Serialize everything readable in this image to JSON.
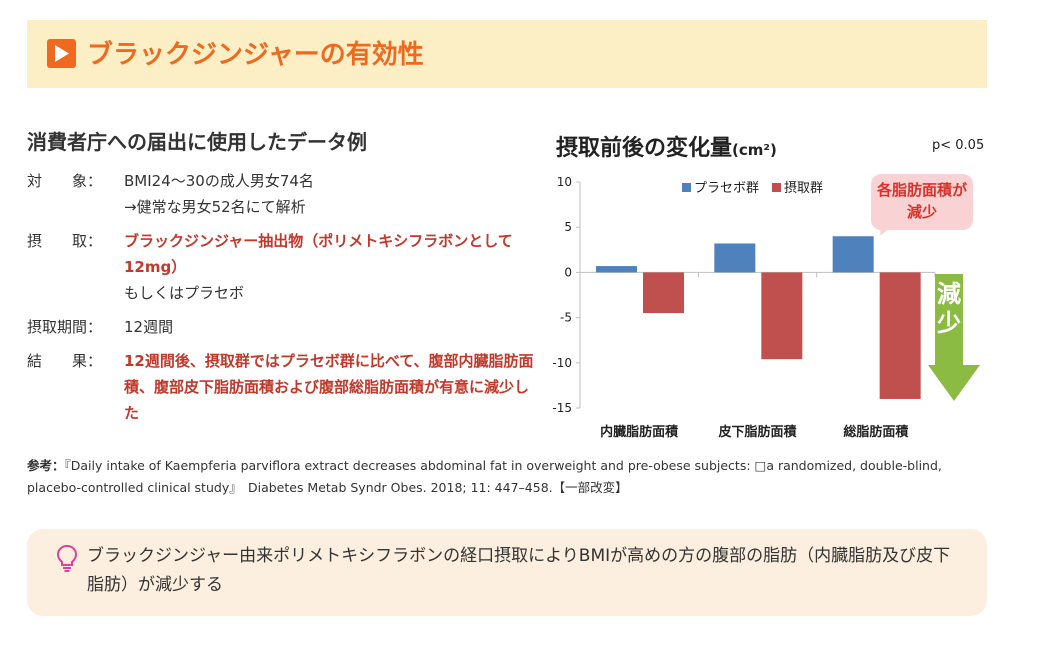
{
  "header": {
    "title": "ブラックジンジャーの有効性",
    "icon": "play-arrow-icon",
    "accent_color": "#ee6a1e"
  },
  "section": {
    "title": "消費者庁への届出に使用したデータ例"
  },
  "info": {
    "subject_label": "対　　象：",
    "subject_line1": "BMI24〜30の成人男女74名",
    "subject_line2": "→健常な男女52名にて解析",
    "intake_label": "摂　　取：",
    "intake_value": "ブラックジンジャー抽出物（ポリメトキシフラボンとして12mg）",
    "intake_alt": "もしくはプラセボ",
    "period_label": "摂取期間：",
    "period_value": "12週間",
    "result_label": "結　　果：",
    "result_value": "12週間後、摂取群ではプラセボ群に比べて、腹部内臓脂肪面積、腹部皮下脂肪面積および腹部総脂肪面積が有意に減少した"
  },
  "chart": {
    "title": "摂取前後の変化量",
    "unit": "(cm²)",
    "pvalue": "p< 0.05",
    "callout": "各脂肪面積が減少",
    "arrow_label": "減少"
  },
  "chart_data": {
    "type": "bar",
    "categories": [
      "内臓脂肪面積",
      "皮下脂肪面積",
      "総脂肪面積"
    ],
    "series": [
      {
        "name": "プラセボ群",
        "color": "#4f81bd",
        "values": [
          0.7,
          3.2,
          4.0
        ]
      },
      {
        "name": "摂取群",
        "color": "#c0504d",
        "values": [
          -4.5,
          -9.6,
          -14.0
        ]
      }
    ],
    "ylim": [
      -15,
      10
    ],
    "yticks": [
      10,
      5,
      0,
      -5,
      -10,
      -15
    ],
    "legend": "top"
  },
  "reference": {
    "label": "参考：",
    "text": "『Daily intake of Kaempferia parviflora extract decreases abdominal fat in overweight and pre-obese subjects: □a randomized, double-blind, placebo-controlled clinical study』　Diabetes Metab Syndr Obes. 2018; 11: 447–458.【一部改変】"
  },
  "summary": {
    "icon": "lightbulb-icon",
    "text": "ブラックジンジャー由来ポリメトキシフラボンの経口摂取によりBMIが高めの方の腹部の脂肪（内臓脂肪及び皮下脂肪）が減少する"
  }
}
